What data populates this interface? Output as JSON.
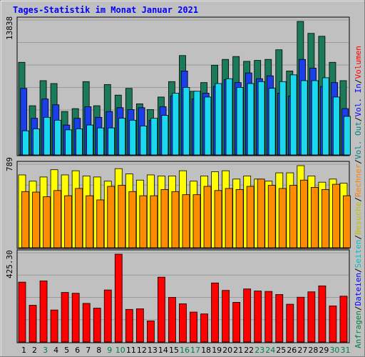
{
  "chart_data": {
    "type": "bar",
    "title": "Tages-Statistik im Monat Januar 2021",
    "categories": [
      "1",
      "2",
      "3",
      "4",
      "5",
      "6",
      "7",
      "8",
      "9",
      "10",
      "11",
      "12",
      "13",
      "14",
      "15",
      "16",
      "17",
      "18",
      "19",
      "20",
      "21",
      "22",
      "23",
      "24",
      "25",
      "26",
      "27",
      "28",
      "29",
      "30",
      "31"
    ],
    "weekend_days": [
      "3",
      "9",
      "10",
      "16",
      "17",
      "23",
      "24",
      "30",
      "31"
    ],
    "y_axis_left_labels": [
      "13838",
      "789",
      "425.30"
    ],
    "right_legend": [
      {
        "text": "Anfragen",
        "color": "#008040"
      },
      {
        "text": "/",
        "color": "#000000"
      },
      {
        "text": "Dateien",
        "color": "#0000ff"
      },
      {
        "text": "/",
        "color": "#000000"
      },
      {
        "text": "Seiten",
        "color": "#00c0c0"
      },
      {
        "text": "/",
        "color": "#000000"
      },
      {
        "text": "Besuche",
        "color": "#c0c000"
      },
      {
        "text": "/",
        "color": "#000000"
      },
      {
        "text": "Rechner",
        "color": "#ff8000"
      },
      {
        "text": "/",
        "color": "#000000"
      },
      {
        "text": "Vol. Out",
        "color": "#008080"
      },
      {
        "text": "/",
        "color": "#000000"
      },
      {
        "text": "Vol. In",
        "color": "#0000ff"
      },
      {
        "text": "/",
        "color": "#000000"
      },
      {
        "text": "Volumen",
        "color": "#ff0000"
      }
    ],
    "panels": [
      {
        "name": "top",
        "ymax": 13838,
        "series": [
          {
            "key": "anfragen",
            "color": "#1a7a5a",
            "offset": 0,
            "values": [
              9600,
              5100,
              7700,
              7400,
              4500,
              4800,
              7600,
              5100,
              7300,
              6200,
              6900,
              5300,
              4700,
              6000,
              7600,
              10300,
              6600,
              7500,
              9300,
              9900,
              10200,
              9700,
              9800,
              9900,
              10900,
              8700,
              13838,
              12600,
              12300,
              9600,
              7700
            ]
          },
          {
            "key": "dateien",
            "color": "#1a3ee8",
            "offset": 3,
            "values": [
              6900,
              3800,
              5800,
              5200,
              3100,
              3800,
              5000,
              3900,
              4500,
              4900,
              4700,
              4900,
              3600,
              5000,
              6100,
              8700,
              5800,
              6400,
              7100,
              7800,
              7500,
              8500,
              7900,
              8200,
              6400,
              6100,
              9900,
              9000,
              7100,
              7500,
              4800
            ]
          },
          {
            "key": "seiten",
            "color": "#1ad8ee",
            "offset": 6,
            "values": [
              2500,
              2700,
              3900,
              3600,
              2600,
              2700,
              3100,
              2800,
              2800,
              3800,
              3600,
              3000,
              3800,
              4100,
              6400,
              7000,
              6600,
              6000,
              7400,
              7900,
              7000,
              7400,
              7600,
              6900,
              7600,
              8300,
              7700,
              7700,
              8000,
              6000,
              4000
            ]
          }
        ]
      },
      {
        "name": "middle",
        "ymax": 789,
        "series": [
          {
            "key": "besuche",
            "color": "#ffff00",
            "offset": 0,
            "values": [
              700,
              640,
              680,
              750,
              700,
              740,
              690,
              680,
              640,
              760,
              710,
              650,
              700,
              690,
              690,
              740,
              640,
              690,
              730,
              740,
              660,
              690,
              660,
              640,
              720,
              720,
              789,
              690,
              630,
              660,
              620
            ]
          },
          {
            "key": "rechner",
            "color": "#ff8c00",
            "offset": 5,
            "values": [
              540,
              535,
              490,
              550,
              500,
              570,
              500,
              460,
              590,
              600,
              540,
              500,
              500,
              560,
              540,
              510,
              510,
              590,
              550,
              570,
              560,
              590,
              660,
              600,
              570,
              600,
              650,
              580,
              560,
              610,
              500
            ]
          }
        ]
      },
      {
        "name": "bottom",
        "ymax": 425.3,
        "series": [
          {
            "key": "volumen",
            "color": "#ff0000",
            "offset": 0,
            "values": [
              290,
              178,
              296,
              155,
              240,
              236,
              187,
              164,
              252,
              425.3,
              158,
              161,
              102,
              314,
              216,
              185,
              145,
              136,
              286,
              250,
              192,
              257,
              247,
              245,
              230,
              183,
              217,
              243,
              272,
              175,
              222
            ]
          }
        ]
      }
    ]
  }
}
